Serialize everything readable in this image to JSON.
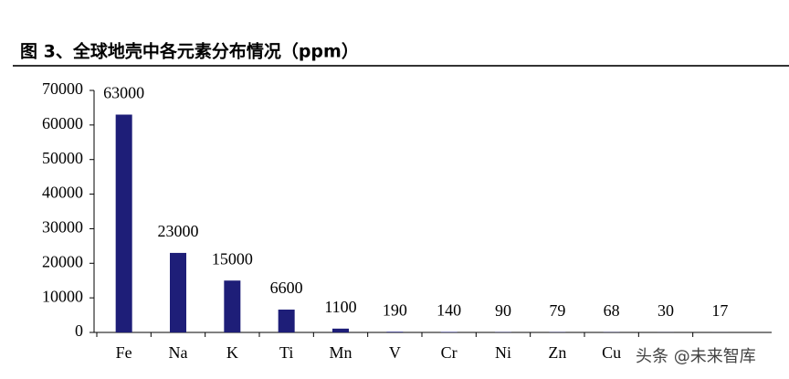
{
  "chart_data": {
    "type": "bar",
    "title": "图 3、全球地壳中各元素分布情况（ppm）",
    "categories": [
      "Fe",
      "Na",
      "K",
      "Ti",
      "Mn",
      "V",
      "Cr",
      "Ni",
      "Zn",
      "Cu",
      null,
      null
    ],
    "values": [
      63000,
      23000,
      15000,
      6600,
      1100,
      190,
      140,
      90,
      79,
      68,
      30,
      17
    ],
    "color": "#1e1e78",
    "ylim": [
      0,
      70000
    ],
    "yticks": [
      0,
      10000,
      20000,
      30000,
      40000,
      50000,
      60000,
      70000
    ],
    "grid": false
  },
  "watermark": "头条 @未来智库"
}
